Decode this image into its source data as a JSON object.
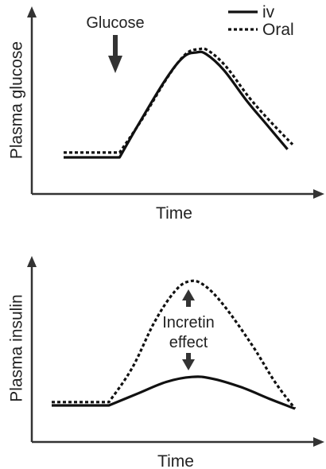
{
  "chart_data": [
    {
      "type": "line",
      "ylabel": "Plasma glucose",
      "xlabel": "Time",
      "legend": {
        "placement": "top-right",
        "entries": [
          {
            "name": "iv",
            "style": "solid"
          },
          {
            "name": "Oral",
            "style": "dotted"
          }
        ]
      },
      "annotations": [
        {
          "text": "Glucose",
          "marker": "down-arrow",
          "points_to": "start of rise"
        }
      ],
      "x_range": [
        0,
        100
      ],
      "y_range": [
        0,
        100
      ],
      "grid": false,
      "series": [
        {
          "name": "iv",
          "style": "solid",
          "points": [
            [
              0,
              20
            ],
            [
              22,
              20
            ],
            [
              30,
              42
            ],
            [
              40,
              68
            ],
            [
              47,
              82
            ],
            [
              52,
              85
            ],
            [
              56,
              84
            ],
            [
              63,
              74
            ],
            [
              72,
              55
            ],
            [
              80,
              40
            ],
            [
              88,
              25
            ]
          ]
        },
        {
          "name": "Oral",
          "style": "dotted",
          "points": [
            [
              0,
              23
            ],
            [
              22,
              23
            ],
            [
              31,
              44
            ],
            [
              41,
              70
            ],
            [
              48,
              84
            ],
            [
              53,
              87
            ],
            [
              57,
              86
            ],
            [
              64,
              76
            ],
            [
              73,
              57
            ],
            [
              82,
              41
            ],
            [
              90,
              28
            ]
          ]
        }
      ]
    },
    {
      "type": "line",
      "ylabel": "Plasma insulin",
      "xlabel": "Time",
      "annotations": [
        {
          "text": "Incretin\neffect",
          "lines": [
            "Incretin",
            "effect"
          ],
          "marker": "double-arrow",
          "between": [
            "Oral",
            "iv"
          ]
        }
      ],
      "x_range": [
        0,
        100
      ],
      "y_range": [
        0,
        100
      ],
      "grid": false,
      "series": [
        {
          "name": "iv",
          "style": "solid",
          "points": [
            [
              0,
              10
            ],
            [
              20,
              10
            ],
            [
              30,
              17
            ],
            [
              40,
              24
            ],
            [
              49,
              27
            ],
            [
              56,
              26
            ],
            [
              66,
              21
            ],
            [
              76,
              14
            ],
            [
              85,
              8
            ]
          ]
        },
        {
          "name": "Oral",
          "style": "dotted",
          "points": [
            [
              0,
              12
            ],
            [
              20,
              12
            ],
            [
              28,
              32
            ],
            [
              36,
              60
            ],
            [
              43,
              78
            ],
            [
              48,
              84
            ],
            [
              53,
              82
            ],
            [
              60,
              70
            ],
            [
              70,
              46
            ],
            [
              78,
              24
            ],
            [
              85,
              8
            ]
          ]
        }
      ]
    }
  ]
}
